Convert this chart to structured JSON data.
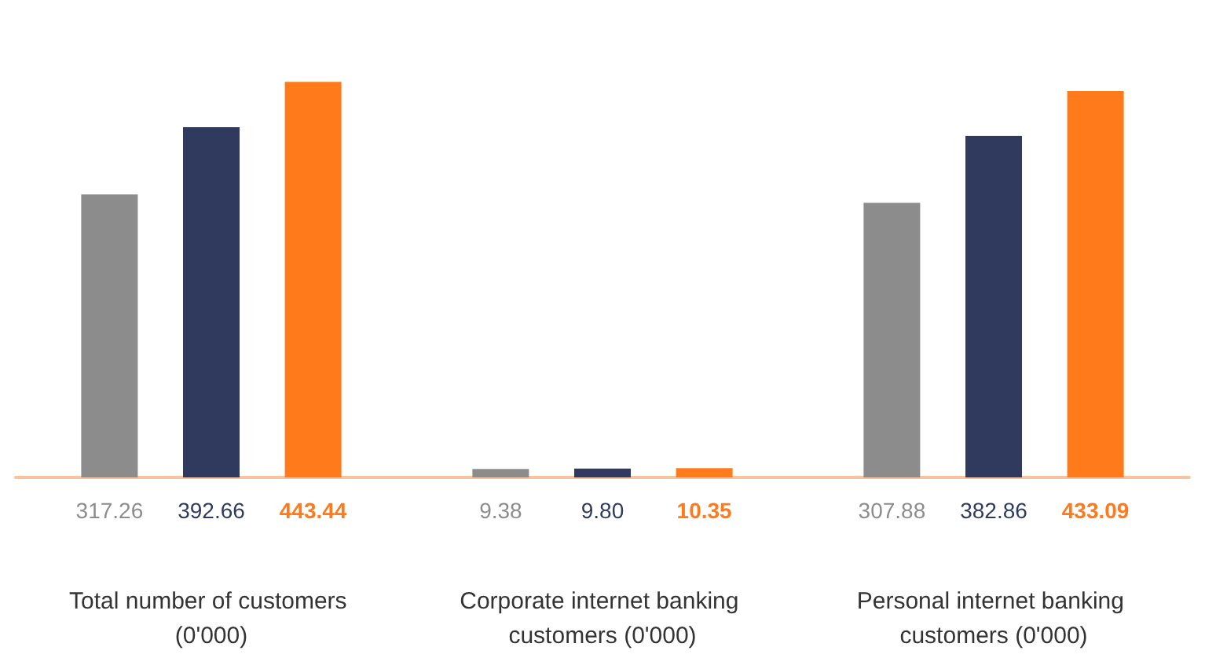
{
  "chart_data": {
    "type": "bar",
    "categories": [
      "Total number of customers (0'000)",
      "Corporate internet banking customers (0'000)",
      "Personal internet banking customers (0'000)"
    ],
    "series": [
      {
        "color": "#8c8c8c",
        "values": [
          317.26,
          9.38,
          307.88
        ],
        "value_labels": [
          "317.26",
          "9.38",
          "307.88"
        ]
      },
      {
        "color": "#2f3a5e",
        "values": [
          392.66,
          9.8,
          382.86
        ],
        "value_labels": [
          "392.66",
          "9.80",
          "382.86"
        ]
      },
      {
        "color": "#ff7a1a",
        "values": [
          443.44,
          10.35,
          433.09
        ],
        "value_labels": [
          "443.44",
          "10.35",
          "433.09"
        ]
      }
    ]
  }
}
